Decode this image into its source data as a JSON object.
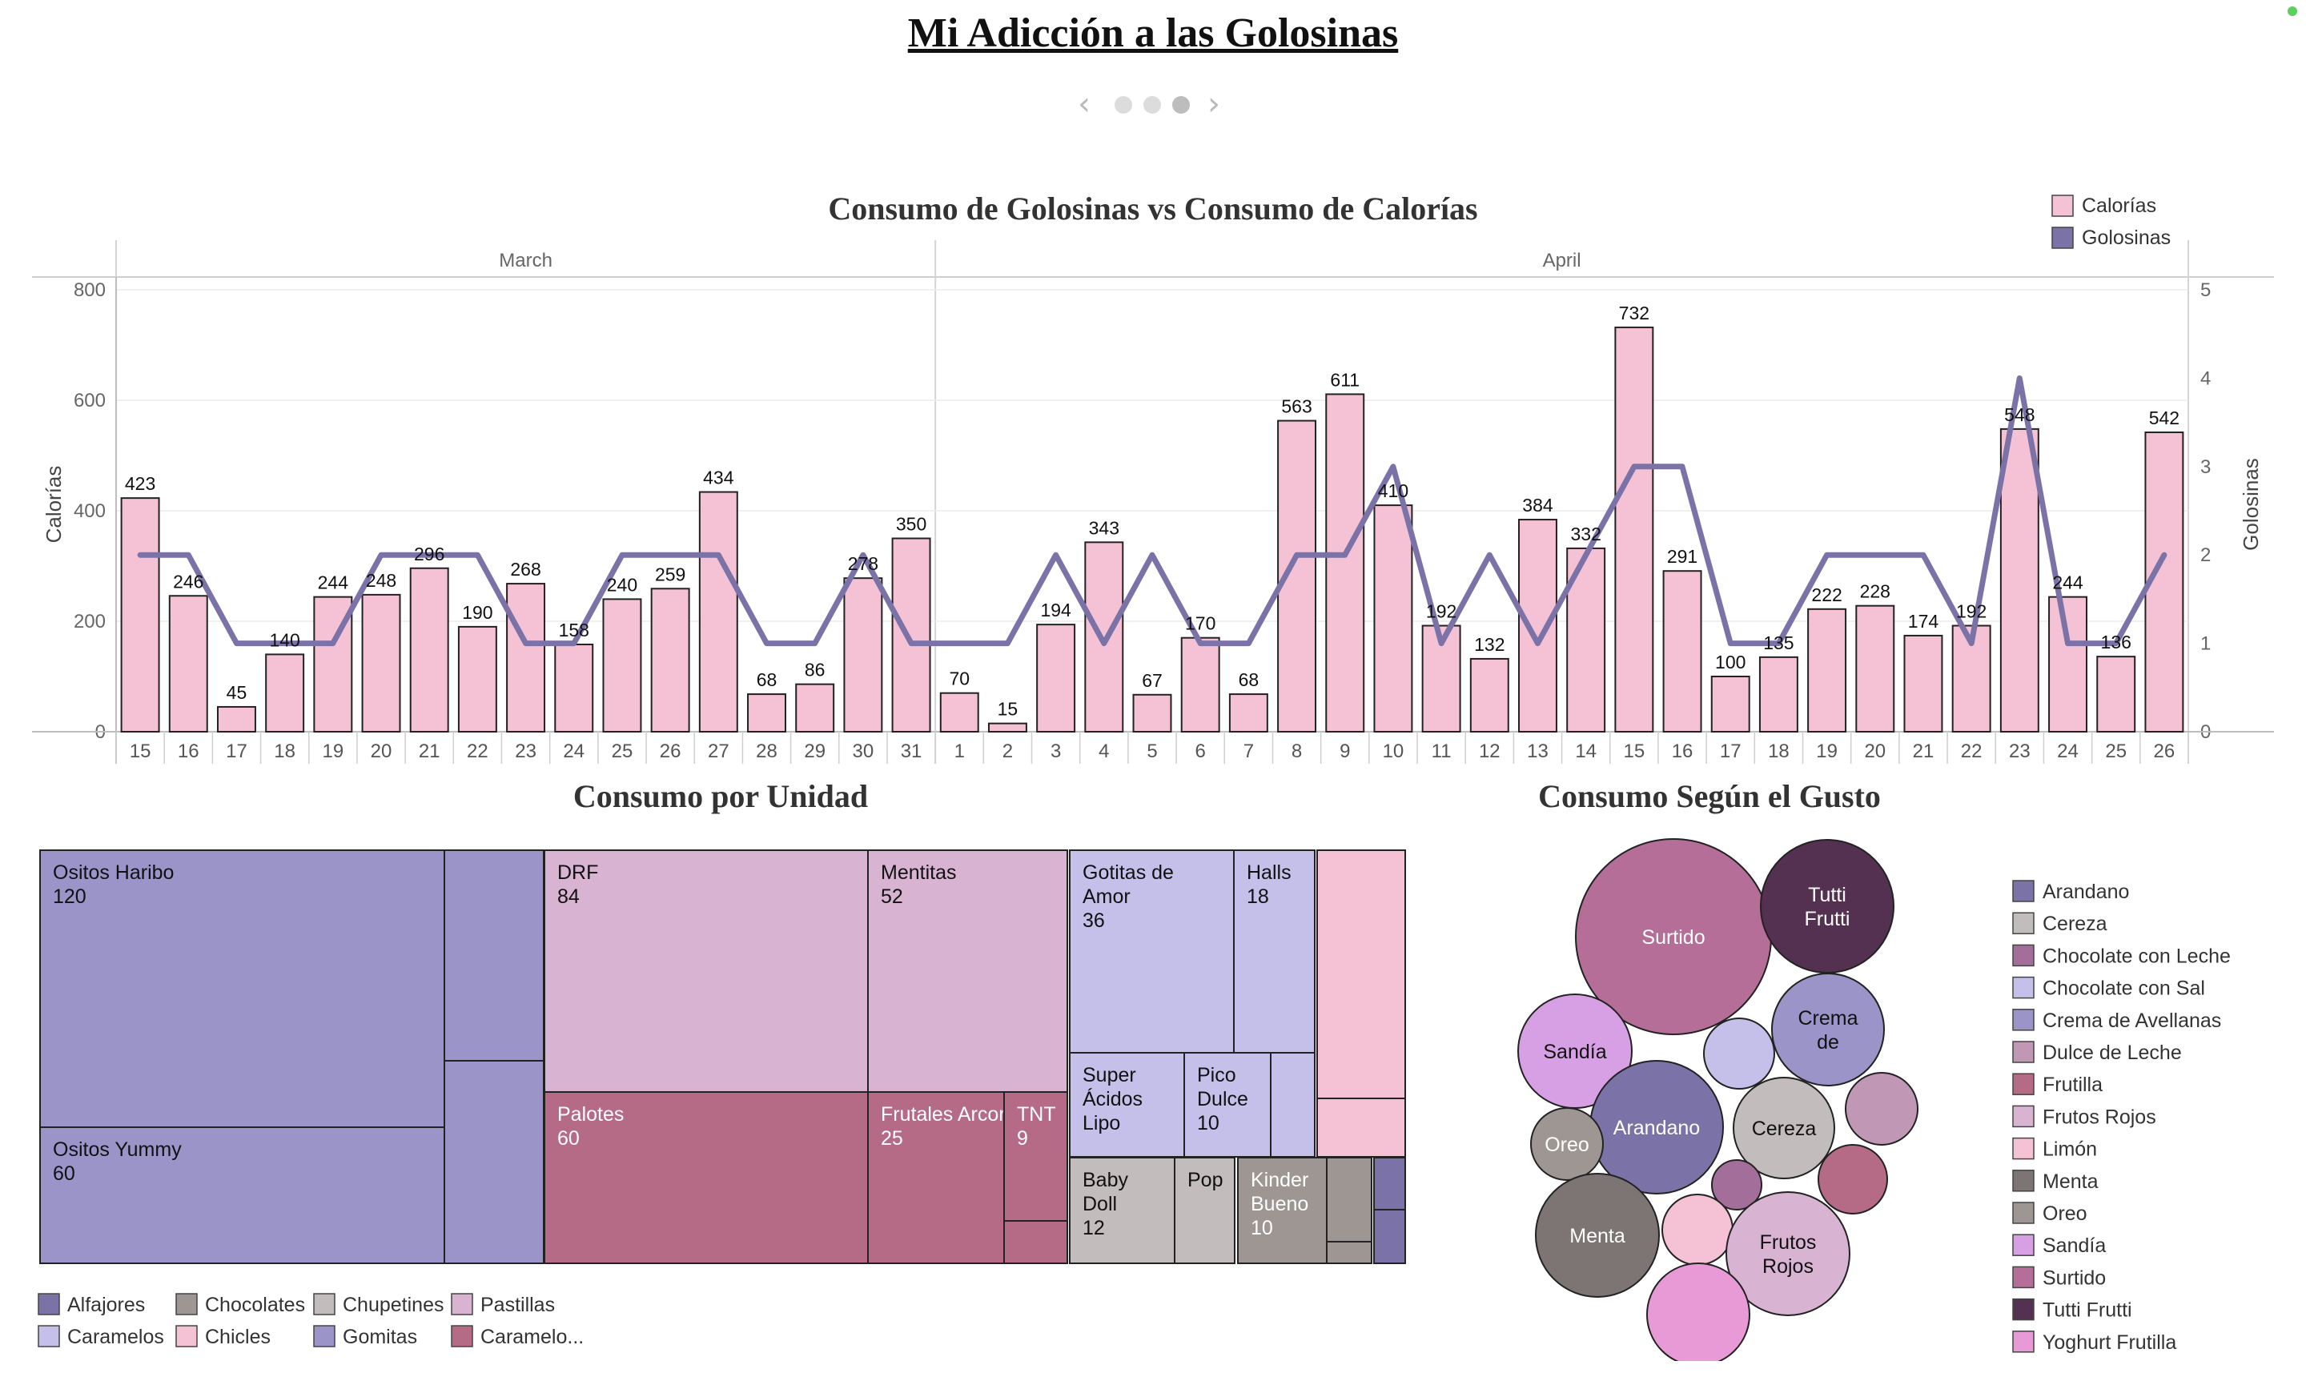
{
  "page": {
    "title": "Mi Adicción a las Golosinas",
    "pager": {
      "prev_icon": "chevron-left-icon",
      "next_icon": "chevron-right-icon",
      "pages": 3,
      "active_page": 3
    }
  },
  "chart_data": [
    {
      "type": "bar",
      "title": "Consumo de Golosinas vs Consumo de Calorías",
      "ylabel": "Calorías",
      "y2label": "Golosinas",
      "ylim": [
        0,
        800
      ],
      "y2lim": [
        0,
        5
      ],
      "yticks": [
        "0",
        "200",
        "400",
        "600",
        "800"
      ],
      "y2ticks": [
        "0",
        "1",
        "2",
        "3",
        "4",
        "5"
      ],
      "legend": [
        {
          "label": "Calorías",
          "color": "#f4c2d4"
        },
        {
          "label": "Golosinas",
          "color": "#7b72a8"
        }
      ],
      "legend_position": "top-right",
      "months": [
        {
          "name": "March",
          "days": [
            "15",
            "16",
            "17",
            "18",
            "19",
            "20",
            "21",
            "22",
            "23",
            "24",
            "25",
            "26",
            "27",
            "28",
            "29",
            "30",
            "31"
          ]
        },
        {
          "name": "April",
          "days": [
            "1",
            "2",
            "3",
            "4",
            "5",
            "6",
            "7",
            "8",
            "9",
            "10",
            "11",
            "12",
            "13",
            "14",
            "15",
            "16",
            "17",
            "18",
            "19",
            "20",
            "21",
            "22",
            "23",
            "24",
            "25",
            "26"
          ]
        }
      ],
      "series": [
        {
          "name": "Calorías",
          "kind": "bar",
          "color": "#f4c2d4",
          "values": [
            423,
            246,
            45,
            140,
            244,
            248,
            296,
            190,
            268,
            158,
            240,
            259,
            434,
            68,
            86,
            278,
            350,
            70,
            15,
            194,
            343,
            67,
            170,
            68,
            563,
            611,
            410,
            192,
            132,
            384,
            332,
            732,
            291,
            100,
            135,
            222,
            228,
            174,
            192,
            548,
            244,
            136,
            542
          ]
        },
        {
          "name": "Golosinas",
          "kind": "line",
          "color": "#7b72a8",
          "values": [
            2,
            2,
            1,
            1,
            1,
            2,
            2,
            2,
            1,
            1,
            2,
            2,
            2,
            1,
            1,
            2,
            1,
            1,
            1,
            2,
            1,
            2,
            1,
            1,
            2,
            2,
            3,
            1,
            2,
            1,
            2,
            3,
            3,
            1,
            1,
            2,
            2,
            2,
            1,
            4,
            1,
            1,
            2
          ]
        }
      ]
    },
    {
      "type": "treemap",
      "title": "Consumo por Unidad",
      "legend": [
        {
          "label": "Alfajores",
          "color": "#7b72a8"
        },
        {
          "label": "Chocolates",
          "color": "#9e9693"
        },
        {
          "label": "Chupetines",
          "color": "#c2bcbc"
        },
        {
          "label": "Pastillas",
          "color": "#d8b4d2"
        },
        {
          "label": "Caramelos",
          "color": "#c4c0ea"
        },
        {
          "label": "Chicles",
          "color": "#f4c2d4"
        },
        {
          "label": "Gomitas",
          "color": "#9b94c8"
        },
        {
          "label": "Caramelo...",
          "color": "#b56a85"
        }
      ],
      "groups": [
        {
          "category": "Gomitas",
          "items": [
            {
              "name": "Ositos Haribo",
              "value": 120
            },
            {
              "name": "Ositos Yummy",
              "value": 60
            },
            {
              "name": "",
              "value": null
            },
            {
              "name": "",
              "value": null
            }
          ]
        },
        {
          "category": "Pastillas",
          "items": [
            {
              "name": "DRF",
              "value": 84
            },
            {
              "name": "Mentitas",
              "value": 52
            }
          ]
        },
        {
          "category": "Caramelo...",
          "items": [
            {
              "name": "Palotes",
              "value": 60
            },
            {
              "name": "Frutales Arcor",
              "value": 25
            },
            {
              "name": "TNT",
              "value": 9
            },
            {
              "name": "",
              "value": null
            }
          ]
        },
        {
          "category": "Caramelos",
          "items": [
            {
              "name": "Gotitas de Amor",
              "value": 36
            },
            {
              "name": "Halls",
              "value": 18
            },
            {
              "name": "Super Ácidos Lipo",
              "value": null
            },
            {
              "name": "Pico Dulce",
              "value": 10
            },
            {
              "name": "",
              "value": null
            }
          ]
        },
        {
          "category": "Chicles",
          "items": [
            {
              "name": "",
              "value": null
            },
            {
              "name": "",
              "value": null
            }
          ]
        },
        {
          "category": "Chupetines",
          "items": [
            {
              "name": "Baby Doll",
              "value": 12
            },
            {
              "name": "Pop",
              "value": null
            }
          ]
        },
        {
          "category": "Chocolates",
          "items": [
            {
              "name": "Kinder Bueno",
              "value": 10
            },
            {
              "name": "",
              "value": null
            },
            {
              "name": "",
              "value": null
            }
          ]
        },
        {
          "category": "Alfajores",
          "items": [
            {
              "name": "",
              "value": null
            },
            {
              "name": "",
              "value": null
            }
          ]
        }
      ]
    },
    {
      "type": "bubble",
      "title": "Consumo Según el Gusto",
      "legend": [
        {
          "label": "Arandano",
          "color": "#7b72a8"
        },
        {
          "label": "Cereza",
          "color": "#c2bcbc"
        },
        {
          "label": "Chocolate con Leche",
          "color": "#a36f9a"
        },
        {
          "label": "Chocolate con Sal",
          "color": "#c4c0ea"
        },
        {
          "label": "Crema de Avellanas",
          "color": "#9b94c8"
        },
        {
          "label": "Dulce de Leche",
          "color": "#c098b6"
        },
        {
          "label": "Frutilla",
          "color": "#b56a85"
        },
        {
          "label": "Frutos Rojos",
          "color": "#d8b4d2"
        },
        {
          "label": "Limón",
          "color": "#f4c2d4"
        },
        {
          "label": "Menta",
          "color": "#7d7574"
        },
        {
          "label": "Oreo",
          "color": "#9e9693"
        },
        {
          "label": "Sandía",
          "color": "#d8a0e4"
        },
        {
          "label": "Surtido",
          "color": "#b56e98"
        },
        {
          "label": "Tutti Frutti",
          "color": "#543150"
        },
        {
          "label": "Yoghurt Frutilla",
          "color": "#e89ad6"
        }
      ],
      "bubbles": [
        {
          "label": "Surtido",
          "color": "#b56e98"
        },
        {
          "label": "Tutti Frutti",
          "color": "#543150"
        },
        {
          "label": "Crema de",
          "color": "#9b94c8"
        },
        {
          "label": "Sandía",
          "color": "#d8a0e4"
        },
        {
          "label": "",
          "color": "#c4c0ea"
        },
        {
          "label": "Arandano",
          "color": "#7b72a8"
        },
        {
          "label": "Cereza",
          "color": "#c2bcbc"
        },
        {
          "label": "",
          "color": "#c098b6"
        },
        {
          "label": "Oreo",
          "color": "#9e9693"
        },
        {
          "label": "",
          "color": "#a36f9a"
        },
        {
          "label": "",
          "color": "#b56a85"
        },
        {
          "label": "Menta",
          "color": "#7d7574"
        },
        {
          "label": "",
          "color": "#f4c2d4"
        },
        {
          "label": "Frutos Rojos",
          "color": "#d8b4d2"
        },
        {
          "label": "",
          "color": "#e89ad6"
        }
      ]
    }
  ]
}
